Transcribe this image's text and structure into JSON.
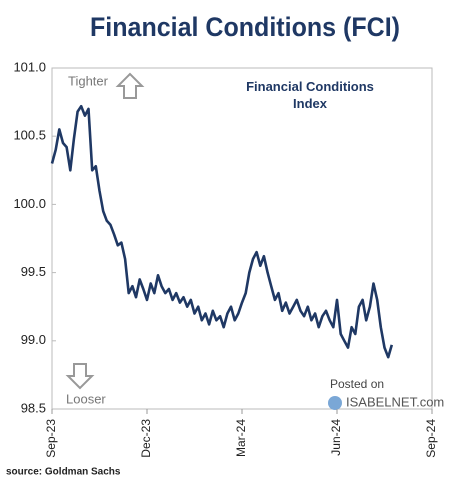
{
  "chart_data": {
    "type": "line",
    "title": "Financial Conditions (FCI)",
    "annotation": "Financial Conditions Index",
    "upper_label": "Tighter",
    "lower_label": "Looser",
    "watermark": [
      "Posted on",
      "ISABELNET.com"
    ],
    "source": "source: Goldman Sachs",
    "color": "#1f3864",
    "values": [
      100.3,
      100.4,
      100.55,
      100.45,
      100.42,
      100.25,
      100.48,
      100.68,
      100.72,
      100.65,
      100.7,
      100.25,
      100.28,
      100.1,
      99.95,
      99.88,
      99.85,
      99.78,
      99.7,
      99.72,
      99.6,
      99.35,
      99.4,
      99.32,
      99.45,
      99.38,
      99.3,
      99.42,
      99.35,
      99.48,
      99.4,
      99.35,
      99.38,
      99.3,
      99.35,
      99.28,
      99.32,
      99.25,
      99.3,
      99.2,
      99.25,
      99.15,
      99.2,
      99.12,
      99.22,
      99.15,
      99.18,
      99.1,
      99.2,
      99.25,
      99.15,
      99.2,
      99.28,
      99.35,
      99.5,
      99.6,
      99.65,
      99.55,
      99.62,
      99.5,
      99.4,
      99.3,
      99.35,
      99.22,
      99.28,
      99.2,
      99.25,
      99.3,
      99.22,
      99.18,
      99.25,
      99.15,
      99.2,
      99.1,
      99.18,
      99.22,
      99.15,
      99.1,
      99.3,
      99.05,
      99.0,
      98.95,
      99.1,
      99.05,
      99.25,
      99.3,
      99.15,
      99.25,
      99.42,
      99.3,
      99.1,
      98.95,
      98.88,
      98.97
    ],
    "xlim": [
      0,
      104
    ],
    "xticks": [
      {
        "value": 0,
        "label": "Sep-23"
      },
      {
        "value": 26,
        "label": "Dec-23"
      },
      {
        "value": 52,
        "label": "Mar-24"
      },
      {
        "value": 78,
        "label": "Jun-24"
      },
      {
        "value": 104,
        "label": "Sep-24"
      }
    ],
    "ylim": [
      98.5,
      101.0
    ],
    "yticks": [
      {
        "value": 98.5,
        "label": "98.5"
      },
      {
        "value": 99.0,
        "label": "99.0"
      },
      {
        "value": 99.5,
        "label": "99.5"
      },
      {
        "value": 100.0,
        "label": "100.0"
      },
      {
        "value": 100.5,
        "label": "100.5"
      },
      {
        "value": 101.0,
        "label": "101.0"
      }
    ]
  }
}
